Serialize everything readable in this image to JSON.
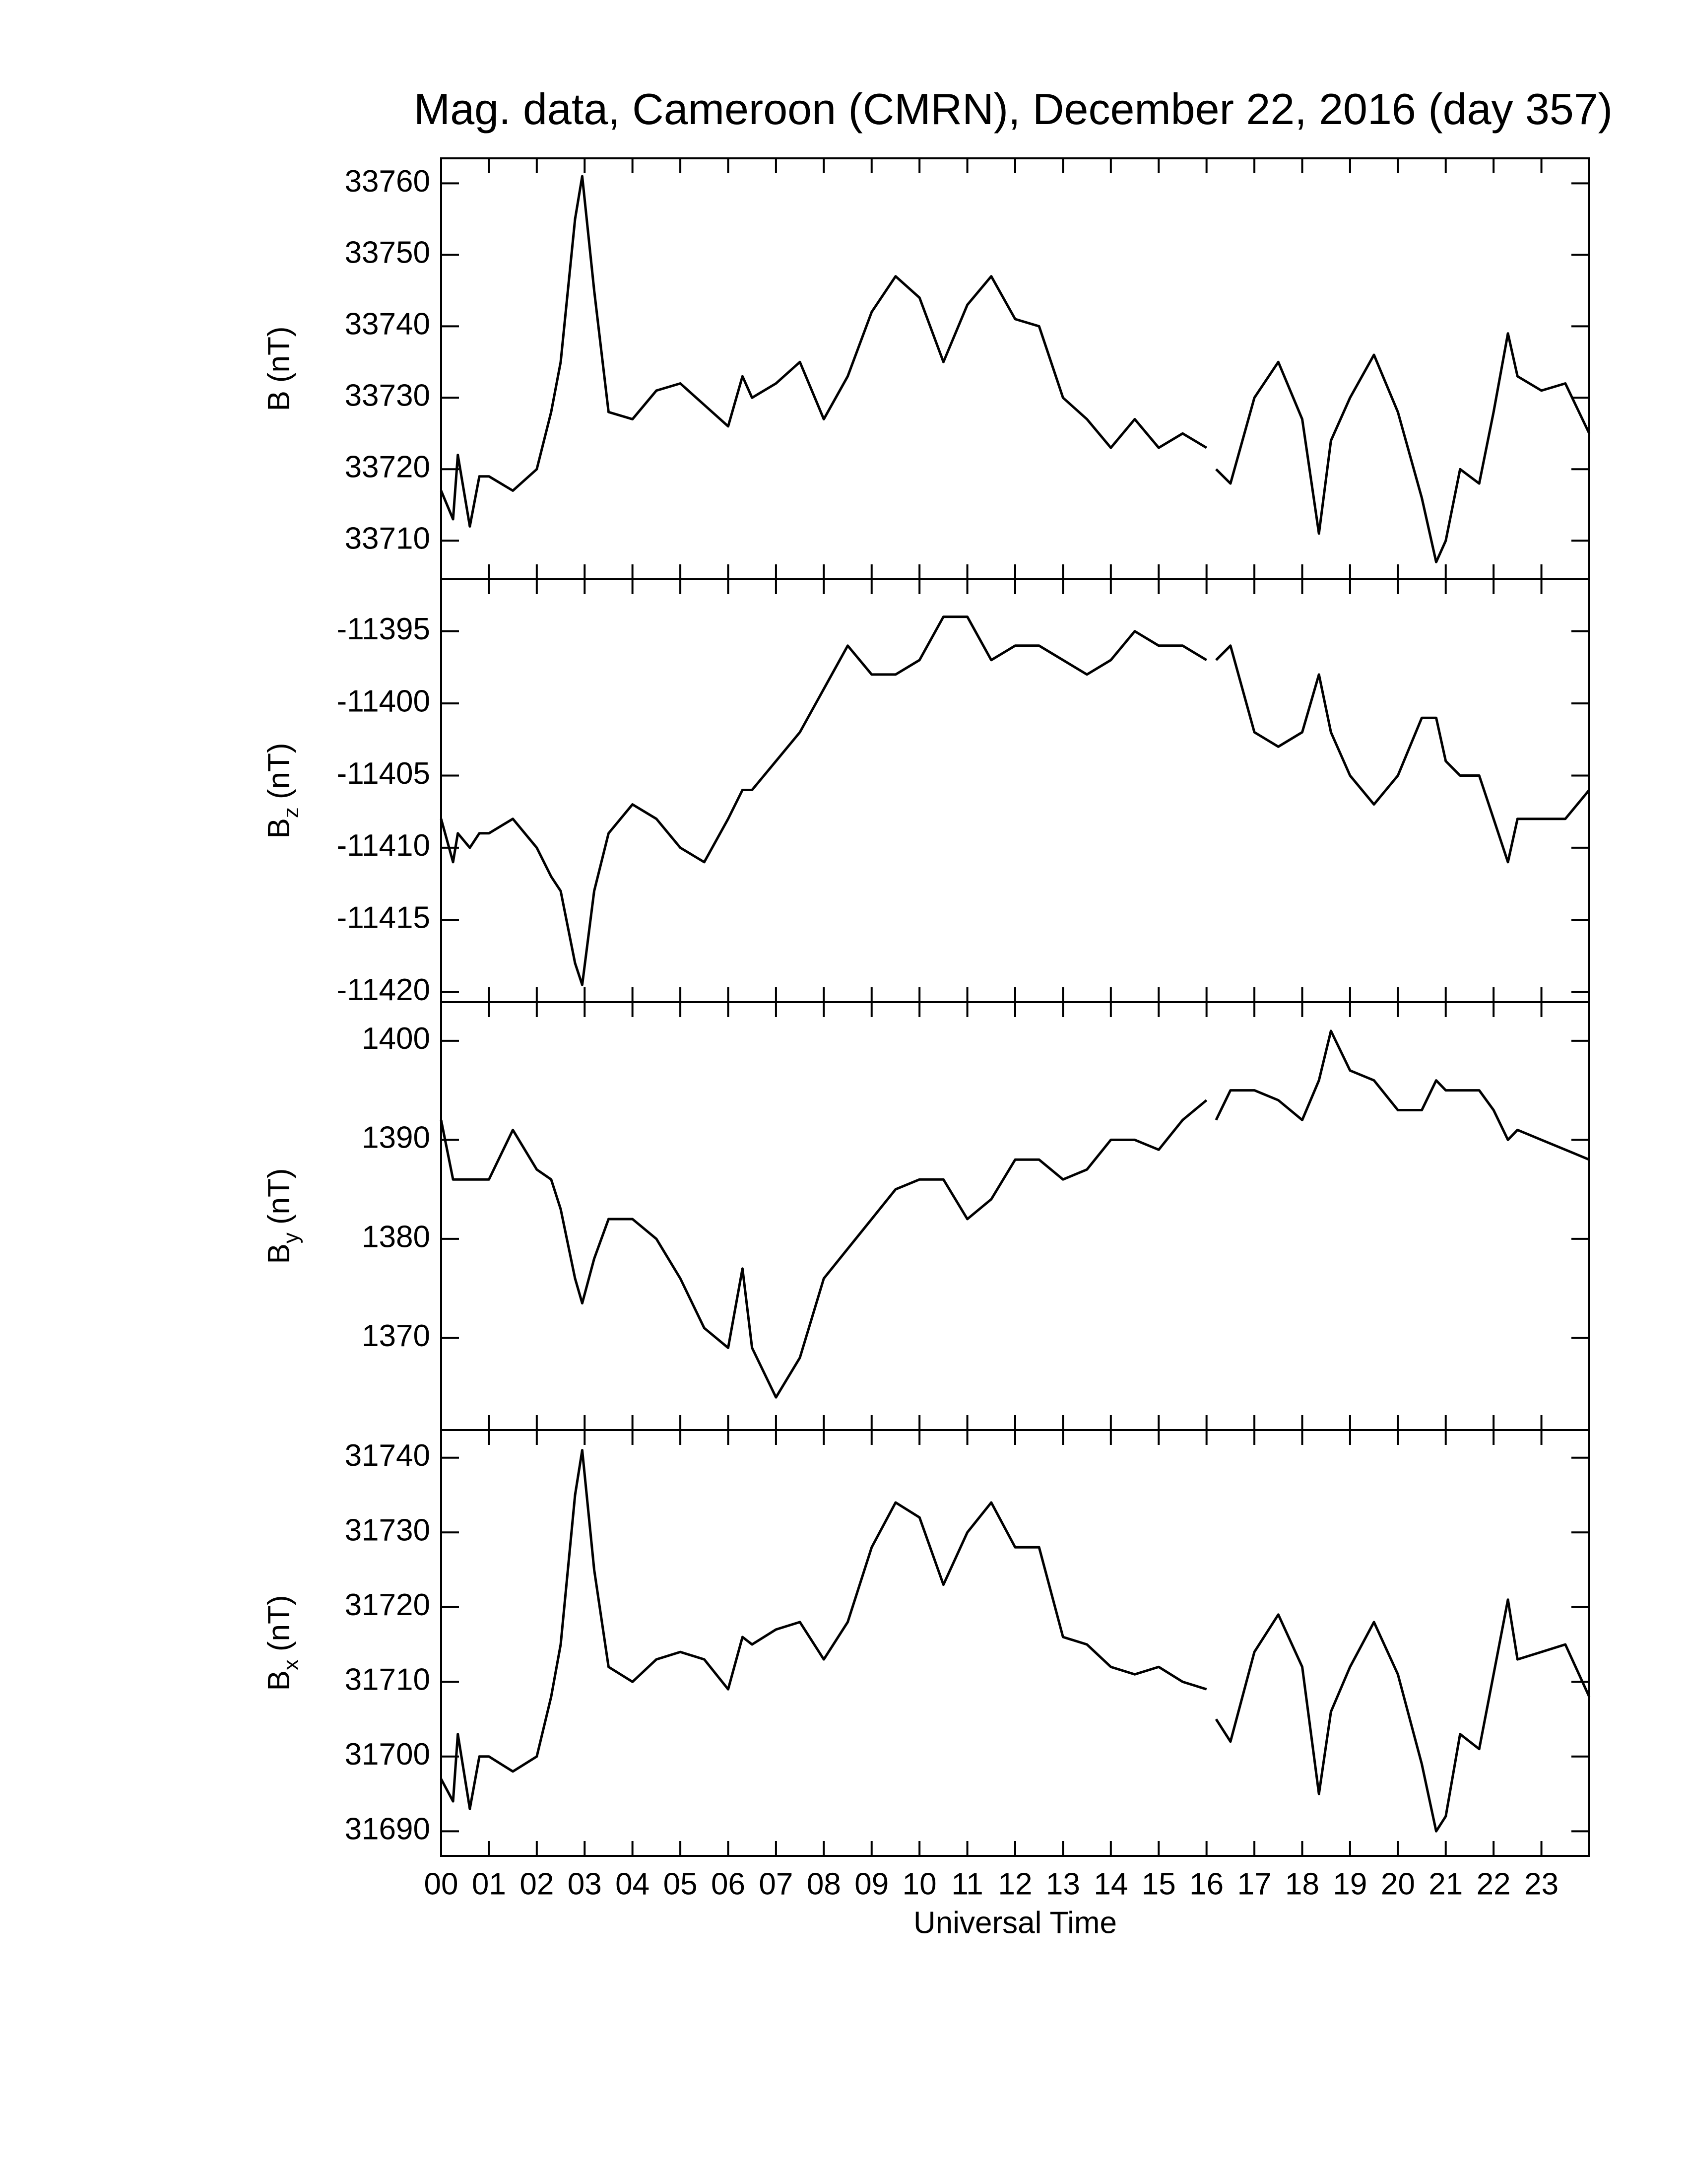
{
  "chart_data": {
    "type": "line",
    "title": "Mag. data, Cameroon (CMRN), December 22, 2016 (day 357)",
    "xlabel": "Universal Time",
    "color": "#000000",
    "xlim": [
      0,
      24
    ],
    "xticks": [
      {
        "value": 0,
        "label": "00"
      },
      {
        "value": 1,
        "label": "01"
      },
      {
        "value": 2,
        "label": "02"
      },
      {
        "value": 3,
        "label": "03"
      },
      {
        "value": 4,
        "label": "04"
      },
      {
        "value": 5,
        "label": "05"
      },
      {
        "value": 6,
        "label": "06"
      },
      {
        "value": 7,
        "label": "07"
      },
      {
        "value": 8,
        "label": "08"
      },
      {
        "value": 9,
        "label": "09"
      },
      {
        "value": 10,
        "label": "10"
      },
      {
        "value": 11,
        "label": "11"
      },
      {
        "value": 12,
        "label": "12"
      },
      {
        "value": 13,
        "label": "13"
      },
      {
        "value": 14,
        "label": "14"
      },
      {
        "value": 15,
        "label": "15"
      },
      {
        "value": 16,
        "label": "16"
      },
      {
        "value": 17,
        "label": "17"
      },
      {
        "value": 18,
        "label": "18"
      },
      {
        "value": 19,
        "label": "19"
      },
      {
        "value": 20,
        "label": "20"
      },
      {
        "value": 21,
        "label": "21"
      },
      {
        "value": 22,
        "label": "22"
      },
      {
        "value": 23,
        "label": "23"
      }
    ],
    "x": [
      0,
      0.25,
      0.35,
      0.6,
      0.8,
      1,
      1.5,
      2,
      2.3,
      2.5,
      2.8,
      2.95,
      3.2,
      3.5,
      4,
      4.5,
      5,
      5.5,
      6,
      6.3,
      6.5,
      7,
      7.5,
      8,
      8.5,
      9,
      9.5,
      10,
      10.5,
      11,
      11.5,
      12,
      12.5,
      13,
      13.5,
      14,
      14.5,
      15,
      15.5,
      16,
      16.1,
      16.2,
      16.5,
      17,
      17.5,
      18,
      18.35,
      18.6,
      19,
      19.5,
      20,
      20.5,
      20.8,
      21,
      21.3,
      21.7,
      22,
      22.3,
      22.5,
      23,
      23.5,
      24
    ],
    "panels": [
      {
        "ylabel": {
          "symbol": "B",
          "unit": "(nT)"
        },
        "ylim": [
          33704.6,
          33763.5
        ],
        "yticks": [
          33710,
          33720,
          33730,
          33740,
          33750,
          33760
        ],
        "values": [
          33717,
          33713,
          33722,
          33712,
          33719,
          33719,
          33717,
          33720,
          33728,
          33735,
          33755,
          33761,
          33745,
          33728,
          33727,
          33731,
          33732,
          33729,
          33726,
          33733,
          33730,
          33732,
          33735,
          33727,
          33733,
          33742,
          33747,
          33744,
          33735,
          33743,
          33747,
          33741,
          33740,
          33730,
          33727,
          33723,
          33727,
          33723,
          33725,
          33723,
          null,
          33720,
          33718,
          33730,
          33735,
          33727,
          33711,
          33724,
          33730,
          33736,
          33728,
          33716,
          33707,
          33710,
          33720,
          33718,
          33728,
          33739,
          33733,
          33731,
          33732,
          33725
        ]
      },
      {
        "ylabel": {
          "symbol": "B",
          "subscript": "z",
          "unit": "(nT)"
        },
        "ylim": [
          -11420.7,
          -11391.4
        ],
        "yticks": [
          -11420,
          -11415,
          -11410,
          -11405,
          -11400,
          -11395
        ],
        "values": [
          -11408,
          -11411,
          -11409,
          -11410,
          -11409,
          -11409,
          -11408,
          -11410,
          -11412,
          -11413,
          -11418,
          -11419.5,
          -11413,
          -11409,
          -11407,
          -11408,
          -11410,
          -11411,
          -11408,
          -11406,
          -11406,
          -11404,
          -11402,
          -11399,
          -11396,
          -11398,
          -11398,
          -11397,
          -11394,
          -11394,
          -11397,
          -11396,
          -11396,
          -11397,
          -11398,
          -11397,
          -11395,
          -11396,
          -11396,
          -11397,
          null,
          -11397,
          -11396,
          -11402,
          -11403,
          -11402,
          -11398,
          -11402,
          -11405,
          -11407,
          -11405,
          -11401,
          -11401,
          -11404,
          -11405,
          -11405,
          -11408,
          -11411,
          -11408,
          -11408,
          -11408,
          -11406
        ]
      },
      {
        "ylabel": {
          "symbol": "B",
          "subscript": "y",
          "unit": "(nT)"
        },
        "ylim": [
          1360.7,
          1403.9
        ],
        "yticks": [
          1370,
          1380,
          1390,
          1400
        ],
        "values": [
          1392,
          1386,
          1386,
          1386,
          1386,
          1386,
          1391,
          1387,
          1386,
          1383,
          1376,
          1373.5,
          1378,
          1382,
          1382,
          1380,
          1376,
          1371,
          1369,
          1377,
          1369,
          1364,
          1368,
          1376,
          1379,
          1382,
          1385,
          1386,
          1386,
          1382,
          1384,
          1388,
          1388,
          1386,
          1387,
          1390,
          1390,
          1389,
          1392,
          1394,
          null,
          1392,
          1395,
          1395,
          1394,
          1392,
          1396,
          1401,
          1397,
          1396,
          1393,
          1393,
          1396,
          1395,
          1395,
          1395,
          1393,
          1390,
          1391,
          1390,
          1389,
          1388
        ]
      },
      {
        "ylabel": {
          "symbol": "B",
          "subscript": "x",
          "unit": "(nT)"
        },
        "ylim": [
          31686.7,
          31743.7
        ],
        "yticks": [
          31690,
          31700,
          31710,
          31720,
          31730,
          31740
        ],
        "values": [
          31697,
          31694,
          31703,
          31693,
          31700,
          31700,
          31698,
          31700,
          31708,
          31715,
          31735,
          31741,
          31725,
          31712,
          31710,
          31713,
          31714,
          31713,
          31709,
          31716,
          31715,
          31717,
          31718,
          31713,
          31718,
          31728,
          31734,
          31732,
          31723,
          31730,
          31734,
          31728,
          31728,
          31716,
          31715,
          31712,
          31711,
          31712,
          31710,
          31709,
          null,
          31705,
          31702,
          31714,
          31719,
          31712,
          31695,
          31706,
          31712,
          31718,
          31711,
          31699,
          31690,
          31692,
          31703,
          31701,
          31711,
          31721,
          31713,
          31714,
          31715,
          31708
        ]
      }
    ]
  }
}
